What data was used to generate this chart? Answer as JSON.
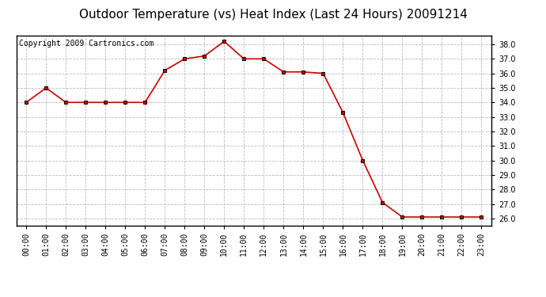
{
  "title": "Outdoor Temperature (vs) Heat Index (Last 24 Hours) 20091214",
  "copyright": "Copyright 2009 Cartronics.com",
  "x_labels": [
    "00:00",
    "01:00",
    "02:00",
    "03:00",
    "04:00",
    "05:00",
    "06:00",
    "07:00",
    "08:00",
    "09:00",
    "10:00",
    "11:00",
    "12:00",
    "13:00",
    "14:00",
    "15:00",
    "16:00",
    "17:00",
    "18:00",
    "19:00",
    "20:00",
    "21:00",
    "22:00",
    "23:00"
  ],
  "y_values": [
    34.0,
    35.0,
    34.0,
    34.0,
    34.0,
    34.0,
    34.0,
    36.2,
    37.0,
    37.2,
    38.2,
    37.0,
    37.0,
    36.1,
    36.1,
    36.0,
    33.3,
    30.0,
    27.1,
    26.1,
    26.1,
    26.1,
    26.1,
    26.1
  ],
  "line_color": "#cc0000",
  "marker": "s",
  "marker_size": 3,
  "marker_color": "#000000",
  "ylim": [
    25.5,
    38.6
  ],
  "yticks": [
    26.0,
    27.0,
    28.0,
    29.0,
    30.0,
    31.0,
    32.0,
    33.0,
    34.0,
    35.0,
    36.0,
    37.0,
    38.0
  ],
  "background_color": "#ffffff",
  "grid_color": "#bbbbbb",
  "title_fontsize": 11,
  "copyright_fontsize": 7,
  "tick_fontsize": 7,
  "ytick_fontsize": 7
}
